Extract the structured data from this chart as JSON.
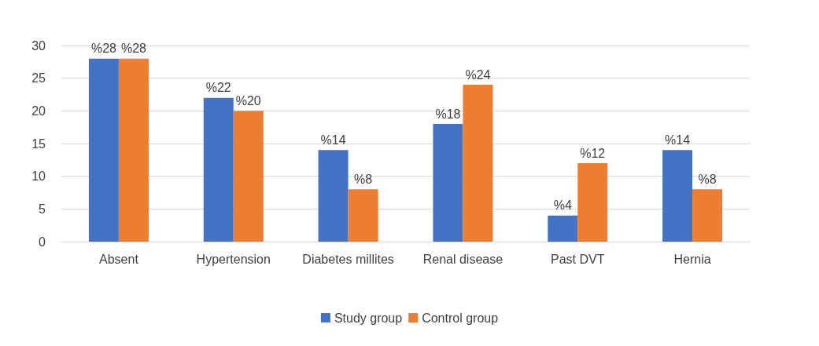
{
  "chart_data": {
    "type": "bar",
    "categories": [
      "Absent",
      "Hypertension",
      "Diabetes millites",
      "Renal disease",
      "Past DVT",
      "Hernia"
    ],
    "series": [
      {
        "name": "Study group",
        "color": "#4472c4",
        "values": [
          28,
          22,
          14,
          18,
          4,
          14
        ],
        "value_labels": [
          "%28",
          "%22",
          "%14",
          "%18",
          "%4",
          "%14"
        ]
      },
      {
        "name": "Control group",
        "color": "#ed7d31",
        "values": [
          28,
          20,
          8,
          24,
          12,
          8
        ],
        "value_labels": [
          "%28",
          "%20",
          "%8",
          "%24",
          "%12",
          "%8"
        ]
      }
    ],
    "ylim": [
      0,
      30
    ],
    "yticks": [
      0,
      5,
      10,
      15,
      20,
      25,
      30
    ],
    "grid": "y",
    "legend": "bottom"
  }
}
